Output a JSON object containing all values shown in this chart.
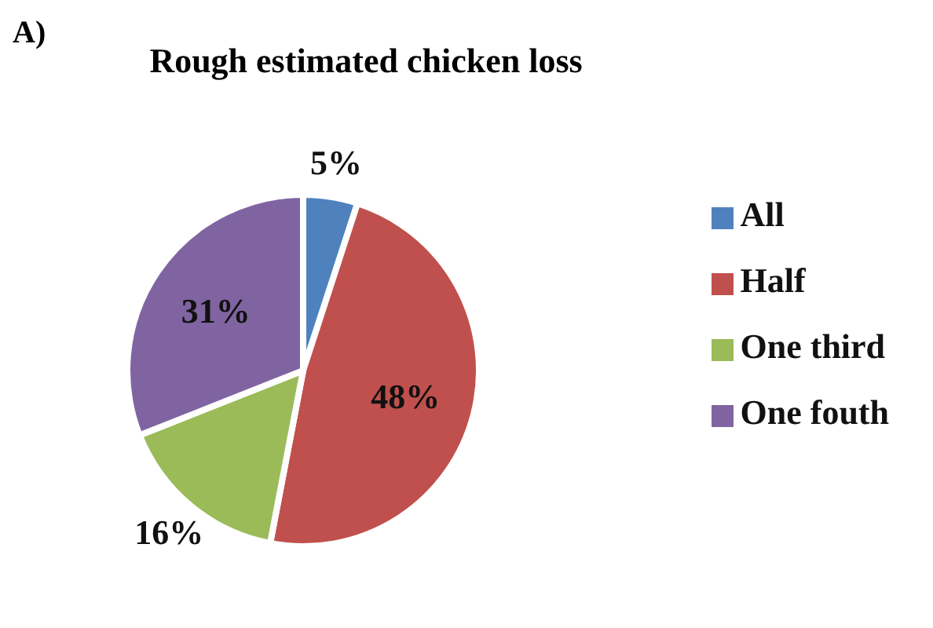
{
  "chart_data": {
    "type": "pie",
    "title": "Rough estimated chicken loss",
    "annotations": [
      "A)"
    ],
    "categories": [
      "All",
      "Half",
      "One third",
      "One fouth"
    ],
    "values": [
      5,
      48,
      16,
      31
    ],
    "value_labels": [
      "5%",
      "48%",
      "16%",
      "31%"
    ],
    "colors": [
      "#4f81bd",
      "#c0504d",
      "#9bbb59",
      "#8064a2"
    ],
    "legend": "right"
  }
}
